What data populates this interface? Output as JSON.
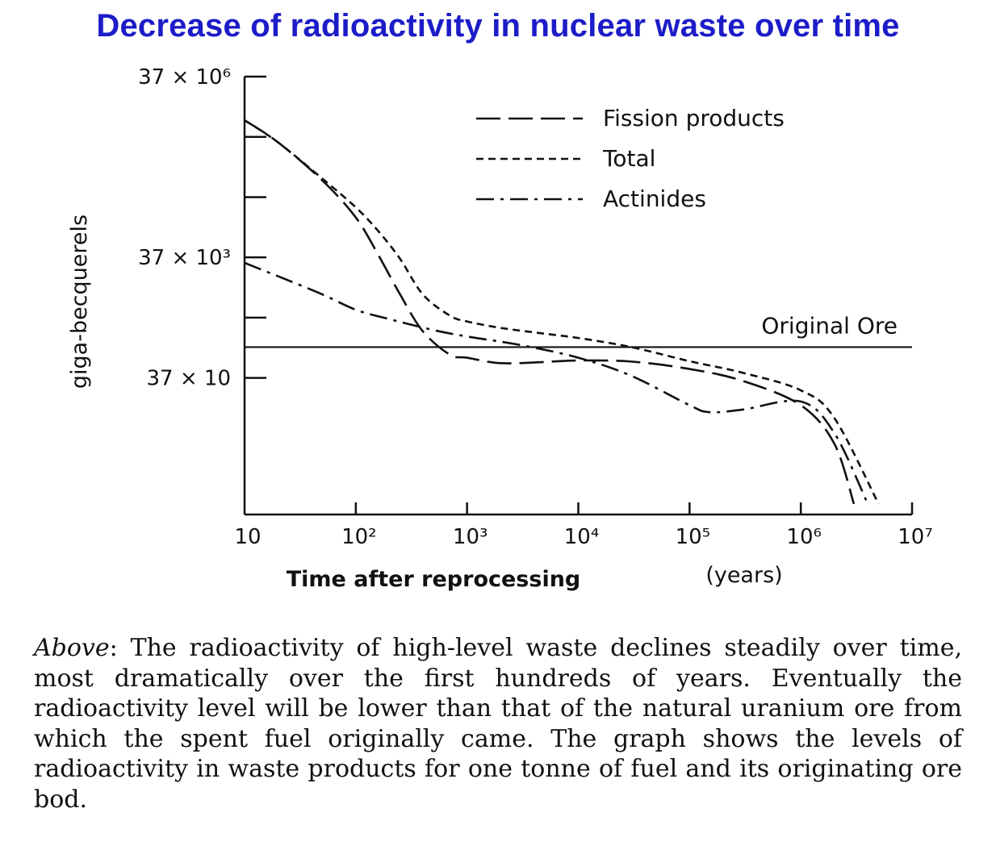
{
  "title": "Decrease of radioactivity in nuclear waste over time",
  "caption": {
    "lead": "Above",
    "text": ": The radioactivity of high-level waste declines steadily over time, most dramatically over the first hundreds of years. Eventually the radioactivity level will be lower than that of the natural uranium ore from which the spent fuel originally came. The graph shows the levels of radioactivity in waste products for one tonne of fuel and its originating ore bod."
  },
  "chart_data": {
    "type": "line",
    "x_scale": "log",
    "y_scale": "log",
    "xlabel": "Time after reprocessing",
    "xunit": "(years)",
    "ylabel": "giga-becquerels",
    "xlim": [
      10,
      10000000
    ],
    "ylim": [
      2,
      37000000
    ],
    "x_ticks": [
      {
        "value": 10,
        "label": "10"
      },
      {
        "value": 100,
        "label": "10²"
      },
      {
        "value": 1000,
        "label": "10³"
      },
      {
        "value": 10000,
        "label": "10⁴"
      },
      {
        "value": 100000,
        "label": "10⁵"
      },
      {
        "value": 1000000,
        "label": "10⁶"
      },
      {
        "value": 10000000,
        "label": "10⁷"
      }
    ],
    "y_ticks": [
      {
        "value": 370,
        "label": "37 × 10"
      },
      {
        "value": 37000,
        "label": "37 × 10³"
      },
      {
        "value": 37000000,
        "label": "37 × 10⁶"
      }
    ],
    "y_minor_ticks": [
      3700,
      370000,
      3700000
    ],
    "legend_position": "top-right",
    "series": [
      {
        "name": "Fission products",
        "style": "long-dash",
        "x": [
          10,
          20,
          50,
          100,
          160,
          250,
          400,
          700,
          1000,
          2000,
          5000,
          10000,
          30000,
          100000,
          300000,
          1000000,
          2000000,
          3000000
        ],
        "y": [
          7000000,
          3000000,
          700000,
          170000,
          40000,
          9000,
          2200,
          900,
          800,
          650,
          680,
          720,
          690,
          520,
          330,
          130,
          30,
          3
        ]
      },
      {
        "name": "Total",
        "style": "short-dash",
        "x": [
          10,
          20,
          50,
          100,
          160,
          250,
          400,
          700,
          1000,
          2000,
          5000,
          10000,
          30000,
          100000,
          300000,
          1000000,
          2000000,
          5000000
        ],
        "y": [
          7000000,
          3000000,
          750000,
          250000,
          100000,
          35000,
          9000,
          4000,
          3200,
          2500,
          2000,
          1700,
          1200,
          700,
          450,
          230,
          80,
          3
        ]
      },
      {
        "name": "Actinides",
        "style": "dash-dot",
        "x": [
          10,
          20,
          50,
          100,
          200,
          500,
          1000,
          3000,
          10000,
          30000,
          100000,
          150000,
          300000,
          1000000,
          2000000,
          4000000
        ],
        "y": [
          30000,
          18000,
          9000,
          5000,
          3500,
          2300,
          1800,
          1300,
          800,
          400,
          130,
          100,
          110,
          150,
          45,
          3
        ]
      }
    ],
    "reference_line": {
      "label": "Original Ore",
      "y": 1200
    }
  }
}
